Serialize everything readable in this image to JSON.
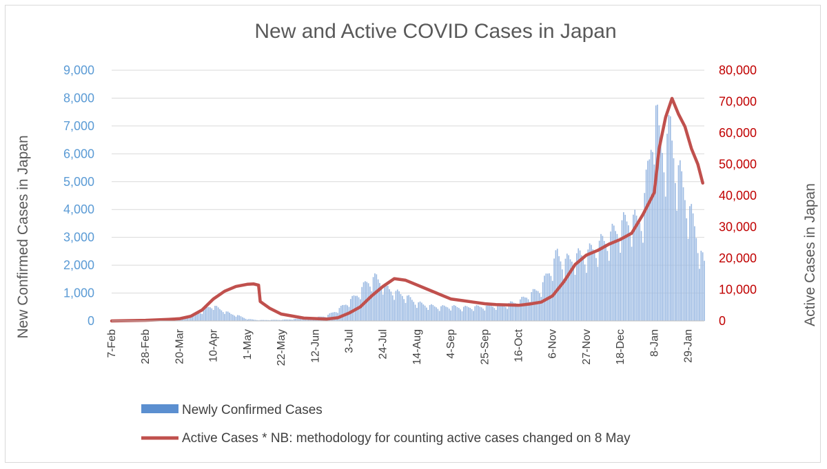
{
  "chart_data": {
    "type": "bar+line",
    "title": "New and Active COVID Cases in Japan",
    "ylabel_left": "New Confirmed Cases in Japan",
    "ylabel_right": "Active Cases in Japan",
    "ylim_left": [
      0,
      9000
    ],
    "ylim_right": [
      0,
      80000
    ],
    "yticks_left": [
      "0",
      "1,000",
      "2,000",
      "3,000",
      "4,000",
      "5,000",
      "6,000",
      "7,000",
      "8,000",
      "9,000"
    ],
    "yticks_right": [
      "0",
      "10,000",
      "20,000",
      "30,000",
      "40,000",
      "50,000",
      "60,000",
      "70,000",
      "80,000"
    ],
    "xticks": [
      "7-Feb",
      "28-Feb",
      "20-Mar",
      "10-Apr",
      "1-May",
      "22-May",
      "12-Jun",
      "3-Jul",
      "24-Jul",
      "14-Aug",
      "4-Sep",
      "25-Sep",
      "16-Oct",
      "6-Nov",
      "27-Nov",
      "18-Dec",
      "8-Jan",
      "29-Jan"
    ],
    "grid": true,
    "legend_position": "bottom",
    "series": [
      {
        "name": "Newly Confirmed Cases",
        "type": "bar",
        "axis": "left",
        "color": "#8faadc",
        "points": [
          [
            0,
            5
          ],
          [
            21,
            20
          ],
          [
            35,
            40
          ],
          [
            42,
            80
          ],
          [
            49,
            150
          ],
          [
            56,
            350
          ],
          [
            60,
            500
          ],
          [
            63,
            550
          ],
          [
            66,
            450
          ],
          [
            70,
            350
          ],
          [
            74,
            250
          ],
          [
            78,
            200
          ],
          [
            84,
            70
          ],
          [
            91,
            30
          ],
          [
            105,
            40
          ],
          [
            112,
            60
          ],
          [
            119,
            90
          ],
          [
            126,
            120
          ],
          [
            133,
            180
          ],
          [
            140,
            400
          ],
          [
            147,
            700
          ],
          [
            153,
            1000
          ],
          [
            158,
            1400
          ],
          [
            164,
            1550
          ],
          [
            170,
            1200
          ],
          [
            175,
            1050
          ],
          [
            182,
            900
          ],
          [
            189,
            650
          ],
          [
            196,
            550
          ],
          [
            203,
            500
          ],
          [
            210,
            520
          ],
          [
            217,
            480
          ],
          [
            224,
            500
          ],
          [
            231,
            520
          ],
          [
            238,
            550
          ],
          [
            245,
            600
          ],
          [
            252,
            700
          ],
          [
            259,
            950
          ],
          [
            266,
            1200
          ],
          [
            270,
            1700
          ],
          [
            273,
            2000
          ],
          [
            276,
            2400
          ],
          [
            280,
            2100
          ],
          [
            287,
            2300
          ],
          [
            294,
            2400
          ],
          [
            301,
            2700
          ],
          [
            308,
            3000
          ],
          [
            315,
            3400
          ],
          [
            322,
            3700
          ],
          [
            325,
            3500
          ],
          [
            329,
            3900
          ],
          [
            333,
            5800
          ],
          [
            336,
            7800
          ],
          [
            339,
            6500
          ],
          [
            343,
            6200
          ],
          [
            346,
            6800
          ],
          [
            350,
            5500
          ],
          [
            354,
            4800
          ],
          [
            357,
            4100
          ],
          [
            361,
            3400
          ],
          [
            364,
            2600
          ],
          [
            367,
            2000
          ]
        ]
      },
      {
        "name": "Active Cases * NB: methodology for counting active cases changed on 8 May",
        "type": "line",
        "axis": "right",
        "color": "#c0504d",
        "points": [
          [
            0,
            0
          ],
          [
            21,
            200
          ],
          [
            35,
            500
          ],
          [
            42,
            700
          ],
          [
            49,
            1500
          ],
          [
            56,
            3500
          ],
          [
            63,
            7000
          ],
          [
            70,
            9500
          ],
          [
            77,
            11000
          ],
          [
            84,
            11700
          ],
          [
            88,
            11800
          ],
          [
            91,
            11400
          ],
          [
            92,
            6200
          ],
          [
            98,
            4000
          ],
          [
            105,
            2200
          ],
          [
            119,
            900
          ],
          [
            133,
            600
          ],
          [
            140,
            1000
          ],
          [
            147,
            2500
          ],
          [
            154,
            4500
          ],
          [
            161,
            8000
          ],
          [
            168,
            11000
          ],
          [
            175,
            13500
          ],
          [
            182,
            13000
          ],
          [
            189,
            11500
          ],
          [
            196,
            10000
          ],
          [
            203,
            8500
          ],
          [
            210,
            7000
          ],
          [
            217,
            6500
          ],
          [
            224,
            6000
          ],
          [
            231,
            5500
          ],
          [
            238,
            5200
          ],
          [
            245,
            5100
          ],
          [
            252,
            5000
          ],
          [
            259,
            5400
          ],
          [
            266,
            6000
          ],
          [
            273,
            8000
          ],
          [
            280,
            12500
          ],
          [
            287,
            18000
          ],
          [
            294,
            21000
          ],
          [
            301,
            22500
          ],
          [
            308,
            24500
          ],
          [
            315,
            26000
          ],
          [
            322,
            28000
          ],
          [
            329,
            34000
          ],
          [
            336,
            41000
          ],
          [
            339,
            55000
          ],
          [
            343,
            65000
          ],
          [
            347,
            71000
          ],
          [
            351,
            66000
          ],
          [
            355,
            62000
          ],
          [
            359,
            55000
          ],
          [
            363,
            50000
          ],
          [
            366,
            44000
          ]
        ]
      }
    ]
  }
}
